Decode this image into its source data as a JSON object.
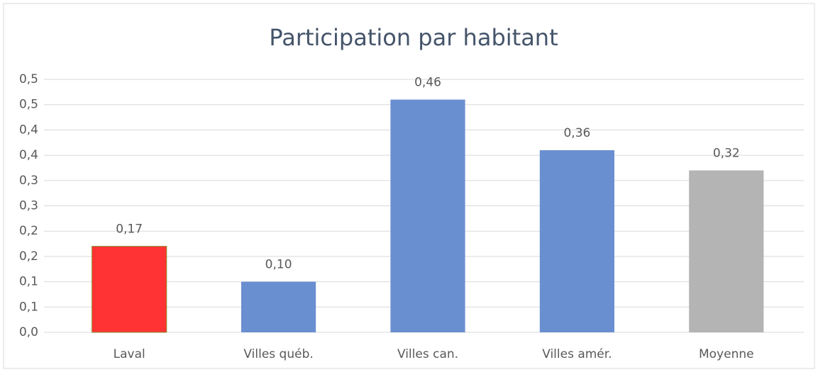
{
  "chart_data": {
    "type": "bar",
    "title": "Participation par habitant",
    "categories": [
      "Laval",
      "Villes québ.",
      "Villes can.",
      "Villes amér.",
      "Moyenne"
    ],
    "values": [
      0.17,
      0.1,
      0.46,
      0.36,
      0.32
    ],
    "value_labels": [
      "0,17",
      "0,10",
      "0,46",
      "0,36",
      "0,32"
    ],
    "colors": [
      "#ff3333",
      "#6a8fd1",
      "#6a8fd1",
      "#6a8fd1",
      "#b4b4b4"
    ],
    "ylim": [
      0,
      0.5
    ],
    "yticks": [
      {
        "value": 0,
        "label": "0,0"
      },
      {
        "value": 0.05,
        "label": "0,1"
      },
      {
        "value": 0.1,
        "label": "0,1"
      },
      {
        "value": 0.15,
        "label": "0,2"
      },
      {
        "value": 0.2,
        "label": "0,2"
      },
      {
        "value": 0.25,
        "label": "0,3"
      },
      {
        "value": 0.3,
        "label": "0,3"
      },
      {
        "value": 0.35,
        "label": "0,4"
      },
      {
        "value": 0.4,
        "label": "0,4"
      },
      {
        "value": 0.45,
        "label": "0,5"
      },
      {
        "value": 0.5,
        "label": "0,5"
      }
    ],
    "grid": true
  }
}
